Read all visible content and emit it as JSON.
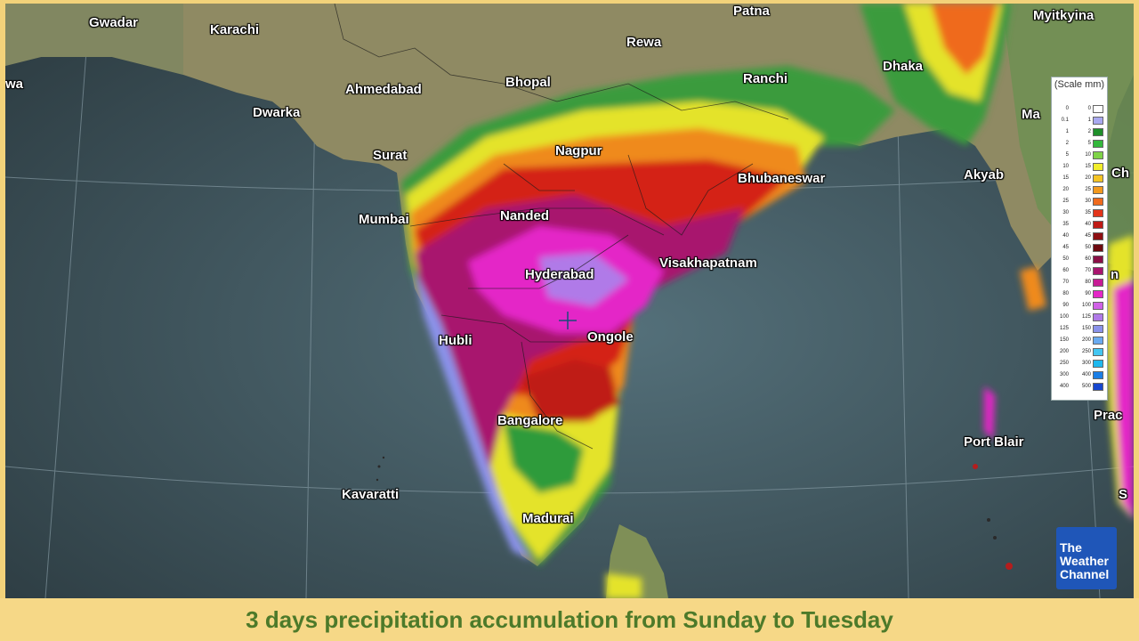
{
  "map": {
    "cities": [
      {
        "key": "gwadar",
        "name": "Gwadar"
      },
      {
        "key": "karachi",
        "name": "Karachi"
      },
      {
        "key": "patna",
        "name": "Patna"
      },
      {
        "key": "myitkyina",
        "name": "Myitkyina"
      },
      {
        "key": "rewa",
        "name": "Rewa"
      },
      {
        "key": "ranchi",
        "name": "Ranchi"
      },
      {
        "key": "dhaka",
        "name": "Dhaka"
      },
      {
        "key": "ahmedabad",
        "name": "Ahmedabad"
      },
      {
        "key": "bhopal",
        "name": "Bhopal"
      },
      {
        "key": "dwarka",
        "name": "Dwarka"
      },
      {
        "key": "surat",
        "name": "Surat"
      },
      {
        "key": "nagpur",
        "name": "Nagpur"
      },
      {
        "key": "bhubaneswar",
        "name": "Bhubaneswar"
      },
      {
        "key": "akyab",
        "name": "Akyab"
      },
      {
        "key": "mumbai",
        "name": "Mumbai"
      },
      {
        "key": "nanded",
        "name": "Nanded"
      },
      {
        "key": "hyderabad",
        "name": "Hyderabad"
      },
      {
        "key": "visakhapatnam",
        "name": "Visakhapatnam"
      },
      {
        "key": "hubli",
        "name": "Hubli"
      },
      {
        "key": "ongole",
        "name": "Ongole"
      },
      {
        "key": "bangalore",
        "name": "Bangalore"
      },
      {
        "key": "kavaratti",
        "name": "Kavaratti"
      },
      {
        "key": "madurai",
        "name": "Madurai"
      },
      {
        "key": "port_blair",
        "name": "Port Blair"
      },
      {
        "key": "edge_wa",
        "name": "wa"
      },
      {
        "key": "edge_ma",
        "name": "Ma"
      },
      {
        "key": "edge_ch",
        "name": "Ch"
      },
      {
        "key": "edge_n",
        "name": "n"
      },
      {
        "key": "edge_prac",
        "name": "Prac"
      },
      {
        "key": "edge_s",
        "name": "S"
      }
    ]
  },
  "legend": {
    "title": "(Scale mm)",
    "rows": [
      {
        "lo": "0",
        "hi": "0",
        "color": "#ffffff"
      },
      {
        "lo": "0.1",
        "hi": "1",
        "color": "#a9a9f0"
      },
      {
        "lo": "1",
        "hi": "2",
        "color": "#1f8f2a"
      },
      {
        "lo": "2",
        "hi": "5",
        "color": "#33b83c"
      },
      {
        "lo": "5",
        "hi": "10",
        "color": "#7fd348"
      },
      {
        "lo": "10",
        "hi": "15",
        "color": "#f2ee2c"
      },
      {
        "lo": "15",
        "hi": "20",
        "color": "#f4c424"
      },
      {
        "lo": "20",
        "hi": "25",
        "color": "#f29a1f"
      },
      {
        "lo": "25",
        "hi": "30",
        "color": "#ef6b1d"
      },
      {
        "lo": "30",
        "hi": "35",
        "color": "#e2341a"
      },
      {
        "lo": "35",
        "hi": "40",
        "color": "#bf1b16"
      },
      {
        "lo": "40",
        "hi": "45",
        "color": "#8e0f12"
      },
      {
        "lo": "45",
        "hi": "50",
        "color": "#6e0a10"
      },
      {
        "lo": "50",
        "hi": "60",
        "color": "#8a1046"
      },
      {
        "lo": "60",
        "hi": "70",
        "color": "#a8156e"
      },
      {
        "lo": "70",
        "hi": "80",
        "color": "#c71c95"
      },
      {
        "lo": "80",
        "hi": "90",
        "color": "#e427c7"
      },
      {
        "lo": "90",
        "hi": "100",
        "color": "#d061e6"
      },
      {
        "lo": "100",
        "hi": "125",
        "color": "#b07ae8"
      },
      {
        "lo": "125",
        "hi": "150",
        "color": "#8a92ea"
      },
      {
        "lo": "150",
        "hi": "200",
        "color": "#6aaaf0"
      },
      {
        "lo": "200",
        "hi": "250",
        "color": "#43c6f2"
      },
      {
        "lo": "250",
        "hi": "300",
        "color": "#1fb8ee"
      },
      {
        "lo": "300",
        "hi": "400",
        "color": "#1a7ee6"
      },
      {
        "lo": "400",
        "hi": "500",
        "color": "#1646cf"
      }
    ]
  },
  "logo": {
    "line1": "The",
    "line2": "Weather",
    "line3": "Channel"
  },
  "caption": "3 days precipitation accumulation from Sunday to Tuesday"
}
